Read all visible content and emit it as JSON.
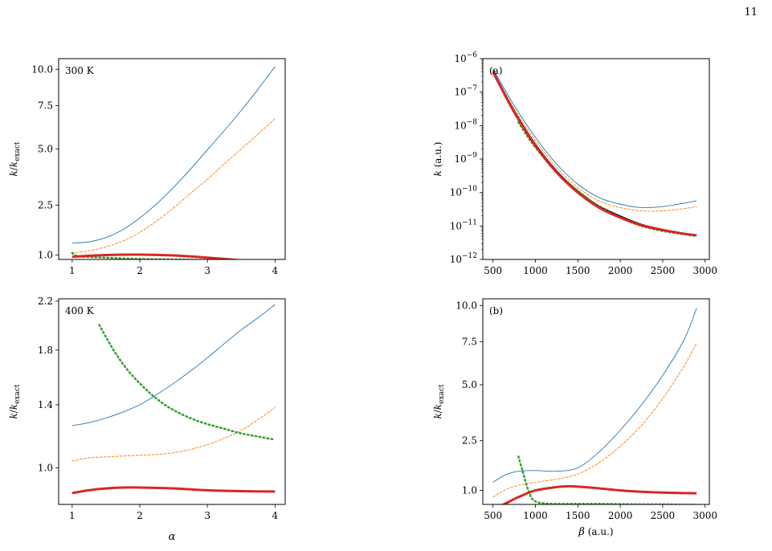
{
  "page": {
    "number": "11"
  },
  "chart_data": [
    {
      "id": "top-left",
      "type": "line",
      "annotation": "300 K",
      "xlabel": "",
      "ylabel_html": "k/k<tspan baseline-shift='sub' font-size='8'>exact</tspan>",
      "ylabel": "k/k_exact",
      "xlim": [
        0.8,
        4.15
      ],
      "ylim": [
        0.9,
        10.8
      ],
      "yscale": "sqrt",
      "xticks": [
        1,
        2,
        3,
        4
      ],
      "xticklabels": [
        "1",
        "2",
        "3",
        "4"
      ],
      "yticks": [
        1.0,
        2.5,
        5.0,
        7.5,
        10.0
      ],
      "yticklabels": [
        "1.0",
        "2.5",
        "5.0",
        "7.5",
        "10.0"
      ],
      "series": [
        {
          "key": "blue-thin",
          "color": "#1f77b4",
          "width": 0.9,
          "dash": "",
          "x": [
            1,
            1.25,
            1.5,
            1.75,
            2,
            2.25,
            2.5,
            2.75,
            3,
            3.25,
            3.5,
            3.75,
            4
          ],
          "y": [
            1.3,
            1.33,
            1.45,
            1.68,
            2.05,
            2.55,
            3.2,
            4.0,
            4.95,
            6.0,
            7.2,
            8.6,
            10.2
          ]
        },
        {
          "key": "orange-dashed",
          "color": "#ff7f0e",
          "width": 0.9,
          "dash": "3,2",
          "x": [
            1,
            1.25,
            1.5,
            1.75,
            2,
            2.25,
            2.5,
            2.75,
            3,
            3.25,
            3.5,
            3.75,
            4
          ],
          "y": [
            1.05,
            1.1,
            1.2,
            1.35,
            1.6,
            1.95,
            2.4,
            2.95,
            3.55,
            4.25,
            5.0,
            5.8,
            6.7
          ]
        },
        {
          "key": "green-dotted",
          "color": "#2ca02c",
          "width": 2.5,
          "dash": "1.5,3.5",
          "x": [
            1,
            1.1,
            1.5,
            2,
            2.5,
            3,
            3.5,
            4
          ],
          "y": [
            1.05,
            0.97,
            0.94,
            0.91,
            0.9,
            0.89,
            0.88,
            0.87
          ]
        },
        {
          "key": "red-thick",
          "color": "#d62728",
          "width": 3,
          "dash": "",
          "x": [
            1,
            1.5,
            2,
            2.5,
            3,
            3.5,
            4
          ],
          "y": [
            0.96,
            1.0,
            1.01,
            0.99,
            0.94,
            0.88,
            0.82
          ]
        }
      ]
    },
    {
      "id": "bottom-left",
      "type": "line",
      "annotation": "400 K",
      "xlabel": "α",
      "ylabel": "k/k_exact",
      "xlim": [
        0.8,
        4.15
      ],
      "ylim": [
        0.8,
        2.22
      ],
      "yscale": "sqrt",
      "xticks": [
        1,
        2,
        3,
        4
      ],
      "xticklabels": [
        "1",
        "2",
        "3",
        "4"
      ],
      "yticks": [
        1.0,
        1.4,
        1.8,
        2.2
      ],
      "yticklabels": [
        "1.0",
        "1.4",
        "1.8",
        "2.2"
      ],
      "series": [
        {
          "key": "blue-thin",
          "color": "#1f77b4",
          "width": 0.9,
          "dash": "",
          "x": [
            1,
            1.25,
            1.5,
            1.75,
            2,
            2.25,
            2.5,
            2.75,
            3,
            3.25,
            3.5,
            3.75,
            4
          ],
          "y": [
            1.26,
            1.28,
            1.31,
            1.35,
            1.4,
            1.47,
            1.55,
            1.64,
            1.74,
            1.85,
            1.96,
            2.06,
            2.17
          ]
        },
        {
          "key": "orange-dashed",
          "color": "#ff7f0e",
          "width": 0.9,
          "dash": "3,2",
          "x": [
            1,
            1.25,
            1.5,
            1.75,
            2,
            2.25,
            2.5,
            2.75,
            3,
            3.25,
            3.5,
            3.75,
            4
          ],
          "y": [
            1.04,
            1.06,
            1.065,
            1.07,
            1.075,
            1.08,
            1.09,
            1.11,
            1.14,
            1.18,
            1.23,
            1.3,
            1.38
          ]
        },
        {
          "key": "green-dotted",
          "color": "#2ca02c",
          "width": 2.5,
          "dash": "1.5,3.5",
          "x": [
            1.4,
            1.6,
            1.8,
            2,
            2.2,
            2.4,
            2.6,
            2.8,
            3,
            3.25,
            3.5,
            3.75,
            4
          ],
          "y": [
            2.0,
            1.81,
            1.66,
            1.55,
            1.46,
            1.39,
            1.34,
            1.3,
            1.27,
            1.24,
            1.21,
            1.19,
            1.17
          ]
        },
        {
          "key": "red-thick",
          "color": "#d62728",
          "width": 3,
          "dash": "",
          "x": [
            1,
            1.25,
            1.5,
            1.75,
            2,
            2.5,
            3,
            3.5,
            4
          ],
          "y": [
            0.86,
            0.875,
            0.885,
            0.89,
            0.89,
            0.885,
            0.875,
            0.87,
            0.868
          ]
        }
      ]
    },
    {
      "id": "top-right",
      "type": "line",
      "annotation": "(a)",
      "xlabel": "",
      "ylabel": "k (a.u.)",
      "xlim": [
        380,
        3050
      ],
      "ylim": [
        -12,
        -6
      ],
      "yscale": "log10-exponent",
      "xticks": [
        500,
        1000,
        1500,
        2000,
        2500,
        3000
      ],
      "xticklabels": [
        "500",
        "1000",
        "1500",
        "2000",
        "2500",
        "3000"
      ],
      "yticks": [
        -12,
        -11,
        -10,
        -9,
        -8,
        -7,
        -6
      ],
      "yticklabels": [
        "10−12",
        "10−11",
        "10−10",
        "10−9",
        "10−8",
        "10−7",
        "10−6"
      ],
      "series": [
        {
          "key": "blue-thin",
          "color": "#1f77b4",
          "width": 0.9,
          "dash": "",
          "x": [
            500,
            750,
            1000,
            1250,
            1500,
            1750,
            2000,
            2250,
            2500,
            2750,
            2900
          ],
          "y": [
            -6.3,
            -7.4,
            -8.35,
            -9.15,
            -9.75,
            -10.15,
            -10.35,
            -10.45,
            -10.42,
            -10.32,
            -10.25
          ]
        },
        {
          "key": "orange-dashed",
          "color": "#ff7f0e",
          "width": 0.9,
          "dash": "3,2",
          "x": [
            500,
            750,
            1000,
            1250,
            1500,
            1750,
            2000,
            2250,
            2500,
            2750,
            2900
          ],
          "y": [
            -6.35,
            -7.5,
            -8.45,
            -9.25,
            -9.85,
            -10.25,
            -10.45,
            -10.55,
            -10.55,
            -10.48,
            -10.42
          ]
        },
        {
          "key": "black-exact",
          "color": "#000000",
          "width": 1.3,
          "dash": "",
          "x": [
            500,
            750,
            1000,
            1250,
            1500,
            1750,
            2000,
            2250,
            2500,
            2750,
            2900
          ],
          "y": [
            -6.35,
            -7.55,
            -8.55,
            -9.35,
            -9.95,
            -10.4,
            -10.7,
            -10.95,
            -11.1,
            -11.22,
            -11.28
          ]
        },
        {
          "key": "green-dotted",
          "color": "#2ca02c",
          "width": 2.5,
          "dash": "1.5,3.5",
          "x": [
            800,
            900,
            1000,
            1250,
            1500,
            1750,
            2000,
            2250,
            2500,
            2750,
            2900
          ],
          "y": [
            -7.9,
            -8.3,
            -8.65,
            -9.4,
            -9.95,
            -10.42,
            -10.75,
            -11.0,
            -11.15,
            -11.25,
            -11.3
          ]
        },
        {
          "key": "red-thick",
          "color": "#d62728",
          "width": 3,
          "dash": "",
          "x": [
            500,
            750,
            1000,
            1250,
            1500,
            1750,
            2000,
            2250,
            2500,
            2750,
            2900
          ],
          "y": [
            -6.4,
            -7.6,
            -8.6,
            -9.4,
            -10.0,
            -10.45,
            -10.75,
            -10.98,
            -11.12,
            -11.23,
            -11.28
          ]
        }
      ]
    },
    {
      "id": "bottom-right",
      "type": "line",
      "annotation": "(b)",
      "xlabel": "β (a.u.)",
      "ylabel": "k/k_exact",
      "xlim": [
        380,
        3050
      ],
      "ylim": [
        0.7,
        10.5
      ],
      "yscale": "sqrt",
      "xticks": [
        500,
        1000,
        1500,
        2000,
        2500,
        3000
      ],
      "xticklabels": [
        "500",
        "1000",
        "1500",
        "2000",
        "2500",
        "3000"
      ],
      "yticks": [
        1.0,
        2.5,
        5.0,
        7.5,
        10.0
      ],
      "yticklabels": [
        "1.0",
        "2.5",
        "5.0",
        "7.5",
        "10.0"
      ],
      "series": [
        {
          "key": "blue-thin",
          "color": "#1f77b4",
          "width": 0.9,
          "dash": "",
          "x": [
            500,
            650,
            800,
            1000,
            1250,
            1500,
            1750,
            2000,
            2250,
            2500,
            2750,
            2900
          ],
          "y": [
            1.2,
            1.4,
            1.5,
            1.52,
            1.5,
            1.6,
            2.1,
            2.9,
            4.0,
            5.5,
            7.6,
            9.8
          ]
        },
        {
          "key": "orange-dashed",
          "color": "#ff7f0e",
          "width": 0.9,
          "dash": "3,2",
          "x": [
            500,
            650,
            800,
            1000,
            1250,
            1500,
            1750,
            2000,
            2250,
            2500,
            2750,
            2900
          ],
          "y": [
            0.85,
            1.02,
            1.12,
            1.2,
            1.28,
            1.42,
            1.75,
            2.3,
            3.1,
            4.3,
            6.0,
            7.4
          ]
        },
        {
          "key": "green-dotted",
          "color": "#2ca02c",
          "width": 2.5,
          "dash": "1.5,3.5",
          "x": [
            800,
            850,
            900,
            950,
            1000,
            1100,
            1250,
            1500,
            1750,
            2000,
            2250,
            2500,
            2750,
            2900
          ],
          "y": [
            1.95,
            1.5,
            1.1,
            0.85,
            0.76,
            0.72,
            0.71,
            0.71,
            0.71,
            0.705,
            0.7,
            0.7,
            0.695,
            0.695
          ]
        },
        {
          "key": "red-thick",
          "color": "#d62728",
          "width": 3,
          "dash": "",
          "x": [
            500,
            650,
            800,
            1000,
            1250,
            1400,
            1500,
            1750,
            2000,
            2250,
            2500,
            2750,
            2900
          ],
          "y": [
            0.6,
            0.72,
            0.85,
            1.0,
            1.08,
            1.1,
            1.09,
            1.05,
            1.0,
            0.97,
            0.95,
            0.94,
            0.935
          ]
        }
      ]
    }
  ]
}
